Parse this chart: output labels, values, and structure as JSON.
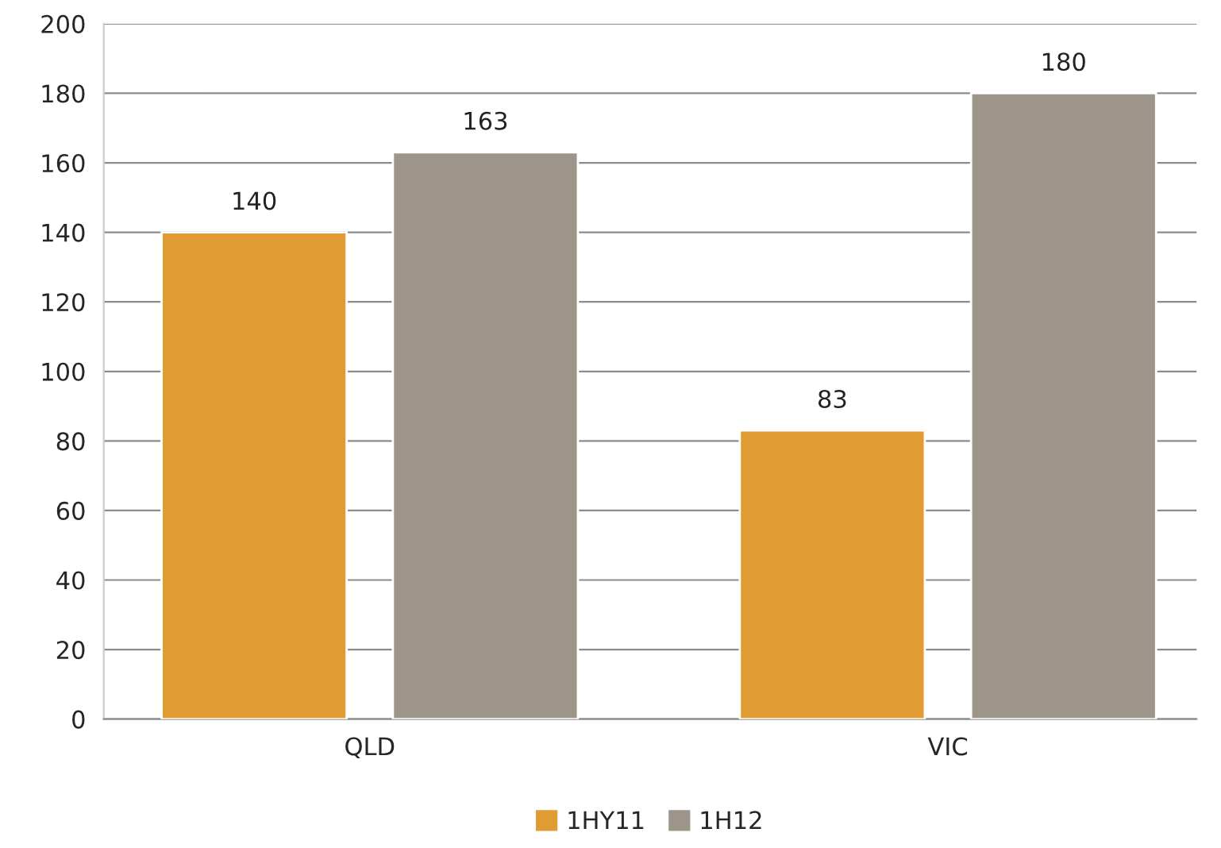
{
  "chart_data": {
    "type": "bar",
    "categories": [
      "QLD",
      "VIC"
    ],
    "series": [
      {
        "name": "1HY11",
        "color": "#e09b33",
        "values": [
          140,
          83
        ]
      },
      {
        "name": "1H12",
        "color": "#9e958a",
        "values": [
          163,
          180
        ]
      }
    ],
    "ylim": [
      0,
      200
    ],
    "yticks": [
      0,
      20,
      40,
      60,
      80,
      100,
      120,
      140,
      160,
      180,
      200
    ],
    "grid": "y",
    "legend": "bottom",
    "data_labels": true
  }
}
